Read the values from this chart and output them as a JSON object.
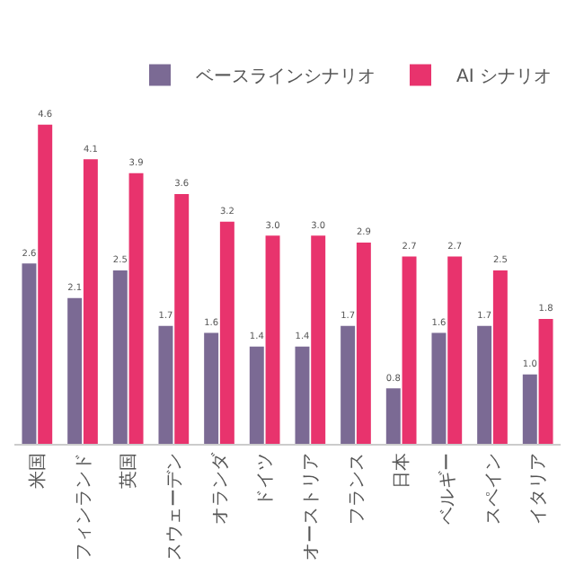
{
  "chart_data": {
    "type": "bar",
    "categories": [
      "米国",
      "フィンランド",
      "英国",
      "スウェーデン",
      "オランダ",
      "ドイツ",
      "オーストリア",
      "フランス",
      "日本",
      "ベルギー",
      "スペイン",
      "イタリア"
    ],
    "series": [
      {
        "name": "ベースラインシナリオ",
        "color": "#7b6a94",
        "values": [
          2.6,
          2.1,
          2.5,
          1.7,
          1.6,
          1.4,
          1.4,
          1.7,
          0.8,
          1.6,
          1.7,
          1.0
        ],
        "value_labels": [
          "2.6",
          "2.1",
          "2.5",
          "1.7",
          "1.6",
          "1.4",
          "1.4",
          "1.7",
          "0.8",
          "1.6",
          "1.7",
          "1.0"
        ]
      },
      {
        "name": "AI シナリオ",
        "color": "#e8336d",
        "values": [
          4.6,
          4.1,
          3.9,
          3.6,
          3.2,
          3.0,
          3.0,
          2.9,
          2.7,
          2.7,
          2.5,
          1.8
        ],
        "value_labels": [
          "4.6",
          "4.1",
          "3.9",
          "3.6",
          "3.2",
          "3.0",
          "3.0",
          "2.9",
          "2.7",
          "2.7",
          "2.5",
          "1.8"
        ]
      }
    ],
    "legend": "top right",
    "grid": false
  }
}
